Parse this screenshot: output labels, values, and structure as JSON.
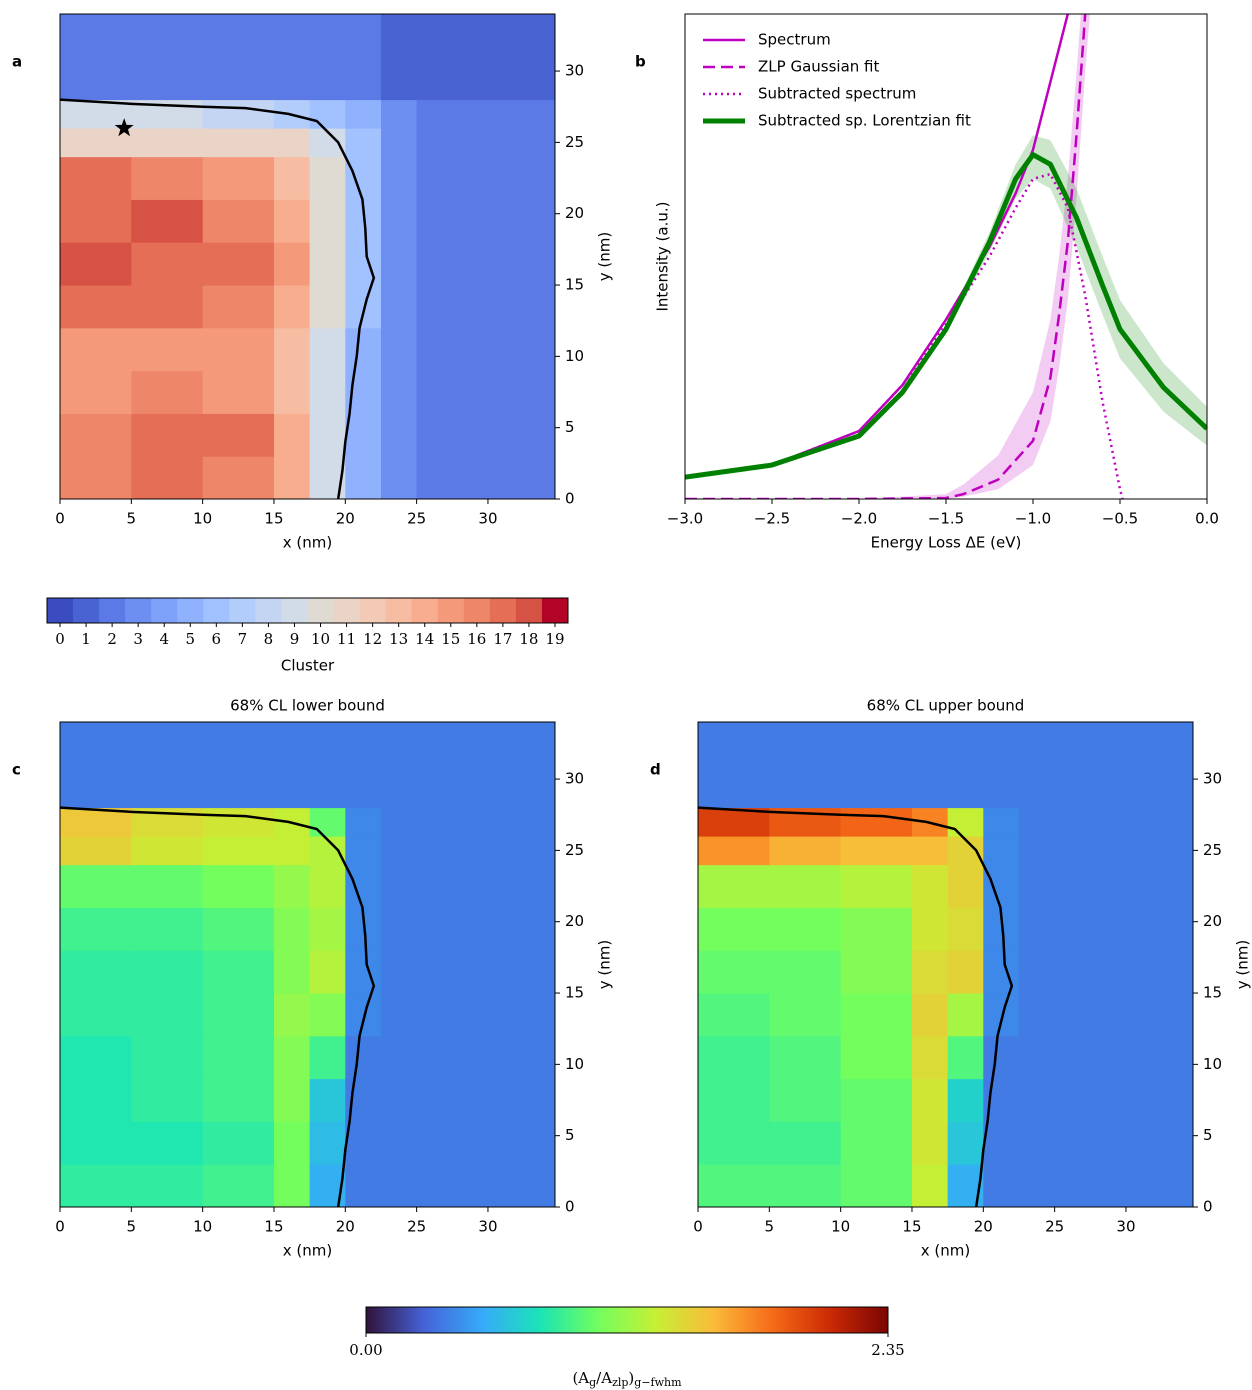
{
  "chart_data": [
    {
      "type": "heatmap",
      "panel": "a",
      "xlabel": "x (nm)",
      "ylabel": "y (nm)",
      "colormap": "coolwarm",
      "xlim": [
        0,
        34.7
      ],
      "ylim": [
        0,
        34
      ],
      "xticks": [
        0,
        5,
        10,
        15,
        20,
        25,
        30
      ],
      "yticks": [
        0,
        5,
        10,
        15,
        20,
        25,
        30
      ],
      "xbins": [
        0,
        5,
        10,
        15,
        17.5,
        20,
        22.5,
        25,
        35
      ],
      "ybins": [
        0,
        3,
        6,
        9,
        12,
        15,
        18,
        21,
        24,
        26,
        28,
        34
      ],
      "z": [
        [
          16,
          17,
          16,
          14,
          9,
          5,
          3,
          2
        ],
        [
          16,
          17,
          17,
          14,
          9,
          5,
          3,
          2
        ],
        [
          15,
          16,
          15,
          13,
          9,
          5,
          3,
          2
        ],
        [
          15,
          15,
          15,
          13,
          9,
          5,
          3,
          2
        ],
        [
          17,
          17,
          16,
          14,
          10,
          6,
          3,
          2
        ],
        [
          18,
          17,
          17,
          15,
          10,
          6,
          3,
          2
        ],
        [
          17,
          18,
          16,
          14,
          10,
          6,
          3,
          2
        ],
        [
          17,
          16,
          15,
          13,
          10,
          6,
          3,
          2
        ],
        [
          11,
          11,
          11,
          11,
          9,
          6,
          3,
          2
        ],
        [
          9,
          9,
          8,
          7,
          6,
          5,
          3,
          2
        ],
        [
          2,
          2,
          2,
          2,
          2,
          2,
          1,
          1
        ]
      ],
      "contour": {
        "x": [
          0,
          5,
          10,
          13,
          16,
          18,
          19.5,
          20.5,
          21.2,
          21.4,
          21.5,
          22,
          21.5,
          21,
          20.8,
          20.5,
          20.3,
          20,
          19.8,
          19.5
        ],
        "y": [
          28,
          27.7,
          27.5,
          27.4,
          27,
          26.5,
          25,
          23,
          21,
          19,
          17,
          15.5,
          14,
          12,
          10,
          8,
          6,
          4,
          2,
          0
        ]
      },
      "marker": {
        "x": 4.5,
        "y": 26
      }
    },
    {
      "type": "line",
      "panel": "b",
      "xlabel": "Energy Loss ΔE (eV)",
      "ylabel": "Intensity (a.u.)",
      "legend": "upper left",
      "xlim": [
        -3,
        0
      ],
      "ylim": [
        0,
        1
      ],
      "xticks": [
        {
          "value": -3,
          "label": "−3.0"
        },
        {
          "value": -2.5,
          "label": "−2.5"
        },
        {
          "value": -2,
          "label": "−2.0"
        },
        {
          "value": -1.5,
          "label": "−1.5"
        },
        {
          "value": -1,
          "label": "−1.0"
        },
        {
          "value": -0.5,
          "label": "−0.5"
        },
        {
          "value": 0,
          "label": "0.0"
        }
      ],
      "series": [
        {
          "name": "Spectrum",
          "color": "#bf00bf",
          "style": "solid",
          "width": 2.5,
          "x": [
            -3,
            -2.5,
            -2,
            -1.75,
            -1.5,
            -1.25,
            -1.1,
            -1,
            -0.9,
            -0.8,
            -0.75
          ],
          "values": [
            0.045,
            0.07,
            0.14,
            0.235,
            0.37,
            0.52,
            0.63,
            0.72,
            0.86,
            1.0,
            1.15
          ]
        },
        {
          "name": "ZLP Gaussian fit",
          "color": "#bf00bf",
          "style": "dashed",
          "width": 2.5,
          "x": [
            -3,
            -2,
            -1.5,
            -1.4,
            -1.2,
            -1,
            -0.9,
            -0.85,
            -0.8,
            -0.75,
            -0.7,
            -0.65
          ],
          "values": [
            0,
            0,
            0.002,
            0.01,
            0.04,
            0.12,
            0.25,
            0.38,
            0.53,
            0.75,
            1.0,
            1.2
          ],
          "lower": [
            0,
            0,
            0,
            0.005,
            0.02,
            0.07,
            0.16,
            0.27,
            0.41,
            0.62,
            0.88,
            1.1
          ],
          "upper": [
            0,
            0,
            0.01,
            0.03,
            0.09,
            0.22,
            0.37,
            0.5,
            0.66,
            0.88,
            1.12,
            1.3
          ]
        },
        {
          "name": "Subtracted spectrum",
          "color": "#bf00bf",
          "style": "dotted",
          "width": 2.5,
          "x": [
            -3,
            -2.5,
            -2,
            -1.75,
            -1.5,
            -1.25,
            -1.1,
            -1,
            -0.9,
            -0.8,
            -0.7,
            -0.6,
            -0.5,
            -0.45
          ],
          "values": [
            0.045,
            0.07,
            0.14,
            0.235,
            0.36,
            0.5,
            0.6,
            0.66,
            0.67,
            0.6,
            0.42,
            0.2,
            0.02,
            -0.05
          ]
        },
        {
          "name": "Subtracted sp. Lorentzian fit",
          "color": "#008000",
          "style": "solid",
          "width": 5,
          "x": [
            -3,
            -2.5,
            -2,
            -1.75,
            -1.5,
            -1.25,
            -1.1,
            -1,
            -0.9,
            -0.75,
            -0.6,
            -0.5,
            -0.25,
            0
          ],
          "values": [
            0.045,
            0.07,
            0.13,
            0.22,
            0.35,
            0.53,
            0.66,
            0.71,
            0.69,
            0.58,
            0.44,
            0.35,
            0.23,
            0.145
          ],
          "lower": [
            0.045,
            0.07,
            0.13,
            0.22,
            0.34,
            0.51,
            0.62,
            0.66,
            0.64,
            0.52,
            0.38,
            0.29,
            0.18,
            0.11
          ],
          "upper": [
            0.045,
            0.07,
            0.13,
            0.22,
            0.36,
            0.55,
            0.69,
            0.75,
            0.74,
            0.64,
            0.5,
            0.41,
            0.28,
            0.19
          ]
        }
      ]
    },
    {
      "type": "colorbar",
      "colormap": "coolwarm",
      "label": "Cluster",
      "categories": [
        0,
        1,
        2,
        3,
        4,
        5,
        6,
        7,
        8,
        9,
        10,
        11,
        12,
        13,
        14,
        15,
        16,
        17,
        18,
        19
      ],
      "colors": [
        "#3b4cc0",
        "#4a63d3",
        "#5b7ae5",
        "#6c8ff1",
        "#7ea1fa",
        "#90b2fe",
        "#a2c1ff",
        "#b3cdfb",
        "#c4d5f3",
        "#d2dbe8",
        "#e0dbd2",
        "#ead4c8",
        "#f2cab5",
        "#f6bda2",
        "#f7ad8e",
        "#f49a7b",
        "#ee8669",
        "#e46e56",
        "#d65244",
        "#b40426"
      ]
    },
    {
      "type": "heatmap",
      "panel": "c",
      "title": "68% CL lower bound",
      "xlabel": "x (nm)",
      "ylabel": "y (nm)",
      "colormap": "turbo",
      "xlim": [
        0,
        34.7
      ],
      "ylim": [
        0,
        34
      ],
      "xticks": [
        0,
        5,
        10,
        15,
        20,
        25,
        30
      ],
      "yticks": [
        0,
        5,
        10,
        15,
        20,
        25,
        30
      ],
      "xbins": [
        0,
        5,
        10,
        15,
        17.5,
        20,
        22.5,
        25,
        35
      ],
      "ybins": [
        0,
        3,
        6,
        9,
        12,
        15,
        18,
        21,
        24,
        26,
        28,
        34
      ],
      "z": [
        [
          0.85,
          0.85,
          0.9,
          1.05,
          0.55,
          0.35,
          0.35,
          0.35
        ],
        [
          0.8,
          0.8,
          0.85,
          1.05,
          0.6,
          0.35,
          0.35,
          0.35
        ],
        [
          0.8,
          0.85,
          0.9,
          1.1,
          0.65,
          0.35,
          0.35,
          0.35
        ],
        [
          0.8,
          0.85,
          0.9,
          1.1,
          0.9,
          0.35,
          0.35,
          0.35
        ],
        [
          0.85,
          0.85,
          0.9,
          1.15,
          1.1,
          0.4,
          0.35,
          0.35
        ],
        [
          0.85,
          0.85,
          0.9,
          1.1,
          1.25,
          0.4,
          0.35,
          0.35
        ],
        [
          0.9,
          0.9,
          0.95,
          1.1,
          1.2,
          0.4,
          0.35,
          0.35
        ],
        [
          1.0,
          1.0,
          1.05,
          1.15,
          1.25,
          0.4,
          0.35,
          0.35
        ],
        [
          1.45,
          1.35,
          1.3,
          1.3,
          1.25,
          0.4,
          0.35,
          0.35
        ],
        [
          1.5,
          1.4,
          1.35,
          1.3,
          1.0,
          0.4,
          0.35,
          0.35
        ],
        [
          0.35,
          0.35,
          0.35,
          0.35,
          0.35,
          0.35,
          0.35,
          0.35
        ]
      ],
      "contour": {
        "x": [
          0,
          5,
          10,
          13,
          16,
          18,
          19.5,
          20.5,
          21.2,
          21.4,
          21.5,
          22,
          21.5,
          21,
          20.8,
          20.5,
          20.3,
          20,
          19.8,
          19.5
        ],
        "y": [
          28,
          27.7,
          27.5,
          27.4,
          27,
          26.5,
          25,
          23,
          21,
          19,
          17,
          15.5,
          14,
          12,
          10,
          8,
          6,
          4,
          2,
          0
        ]
      }
    },
    {
      "type": "heatmap",
      "panel": "d",
      "title": "68% CL upper bound",
      "xlabel": "x (nm)",
      "ylabel": "y (nm)",
      "colormap": "turbo",
      "xlim": [
        0,
        34.7
      ],
      "ylim": [
        0,
        34
      ],
      "xticks": [
        0,
        5,
        10,
        15,
        20,
        25,
        30
      ],
      "yticks": [
        0,
        5,
        10,
        15,
        20,
        25,
        30
      ],
      "xbins": [
        0,
        5,
        10,
        15,
        17.5,
        20,
        22.5,
        25,
        35
      ],
      "ybins": [
        0,
        3,
        6,
        9,
        12,
        15,
        18,
        21,
        24,
        26,
        28,
        34
      ],
      "z": [
        [
          0.95,
          0.95,
          1.0,
          1.3,
          0.55,
          0.35,
          0.35,
          0.35
        ],
        [
          0.9,
          0.9,
          1.0,
          1.35,
          0.65,
          0.35,
          0.35,
          0.35
        ],
        [
          0.9,
          0.95,
          1.0,
          1.35,
          0.7,
          0.35,
          0.35,
          0.35
        ],
        [
          0.9,
          0.95,
          1.05,
          1.4,
          0.95,
          0.35,
          0.35,
          0.35
        ],
        [
          0.95,
          1.0,
          1.05,
          1.45,
          1.2,
          0.4,
          0.35,
          0.35
        ],
        [
          1.0,
          1.0,
          1.1,
          1.4,
          1.45,
          0.4,
          0.35,
          0.35
        ],
        [
          1.05,
          1.05,
          1.1,
          1.35,
          1.4,
          0.4,
          0.35,
          0.35
        ],
        [
          1.2,
          1.2,
          1.25,
          1.35,
          1.45,
          0.4,
          0.35,
          0.35
        ],
        [
          1.7,
          1.6,
          1.55,
          1.55,
          1.45,
          0.4,
          0.35,
          0.35
        ],
        [
          2.0,
          1.9,
          1.85,
          1.75,
          1.3,
          0.4,
          0.35,
          0.35
        ],
        [
          0.35,
          0.35,
          0.35,
          0.35,
          0.35,
          0.35,
          0.35,
          0.35
        ]
      ],
      "contour": {
        "x": [
          0,
          5,
          10,
          13,
          16,
          18,
          19.5,
          20.5,
          21.2,
          21.4,
          21.5,
          22,
          21.5,
          21,
          20.8,
          20.5,
          20.3,
          20,
          19.8,
          19.5
        ],
        "y": [
          28,
          27.7,
          27.5,
          27.4,
          27,
          26.5,
          25,
          23,
          21,
          19,
          17,
          15.5,
          14,
          12,
          10,
          8,
          6,
          4,
          2,
          0
        ]
      }
    },
    {
      "type": "colorbar",
      "colormap": "turbo",
      "clim": [
        0,
        2.35
      ],
      "colors": [
        "#30123b",
        "#4662d7",
        "#36aaf9",
        "#1ae4b6",
        "#72fe5e",
        "#c7ef34",
        "#fabb39",
        "#f66b19",
        "#cb2a04",
        "#7a0403"
      ],
      "ticks": [
        {
          "value": 0,
          "label": "0.00"
        },
        {
          "value": 2.35,
          "label": "2.35"
        }
      ],
      "label_parts": [
        {
          "text": "(A"
        },
        {
          "text": "g",
          "sub": true
        },
        {
          "text": "/A"
        },
        {
          "text": "zlp",
          "sub": true
        },
        {
          "text": ")"
        },
        {
          "text": "g−fwhm",
          "sub": true
        }
      ]
    }
  ]
}
